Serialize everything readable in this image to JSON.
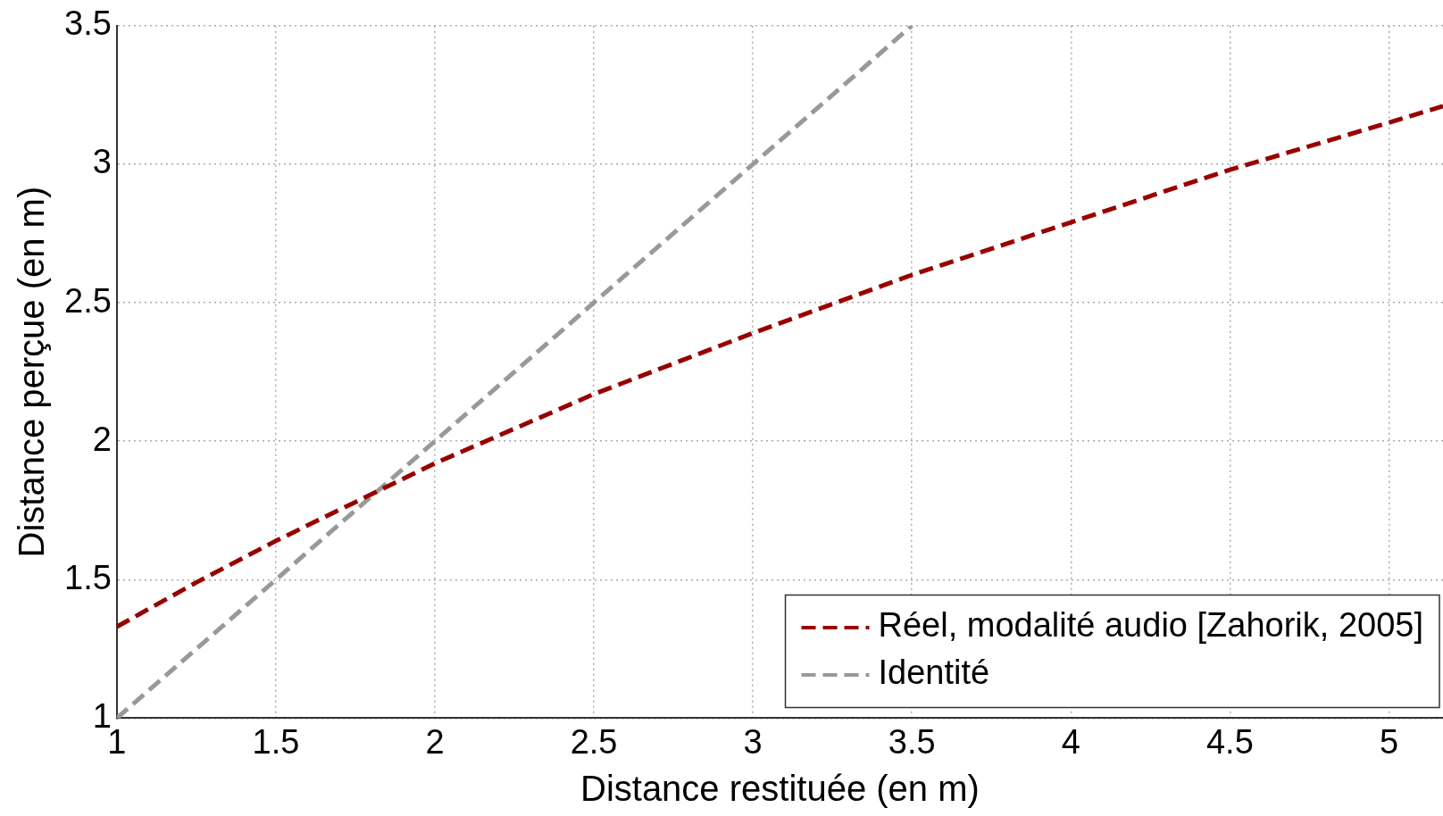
{
  "chart_data": {
    "type": "line",
    "xlabel": "Distance restituée (en m)",
    "ylabel": "Distance perçue (en m)",
    "xlim": [
      1,
      5.17
    ],
    "xticks": [
      1,
      1.5,
      2,
      2.5,
      3,
      3.5,
      4,
      4.5,
      5
    ],
    "ylim": [
      1,
      3.5
    ],
    "yticks": [
      1,
      1.5,
      2,
      2.5,
      3,
      3.5
    ],
    "grid": true,
    "legend": "bottom right",
    "marker": "none",
    "series": [
      {
        "name": "Réel, modalité audio [Zahorik, 2005]",
        "color": "#990000",
        "line_style": "dashed",
        "x": [
          1,
          1.25,
          1.5,
          1.75,
          2,
          2.5,
          3,
          3.5,
          4,
          4.5,
          5,
          5.17
        ],
        "values": [
          1.33,
          1.49,
          1.64,
          1.78,
          1.92,
          2.17,
          2.39,
          2.6,
          2.79,
          2.98,
          3.15,
          3.21
        ]
      },
      {
        "name": "Identité",
        "color": "#999999",
        "line_style": "dashed",
        "x": [
          1,
          3.5
        ],
        "values": [
          1,
          3.5
        ]
      }
    ]
  }
}
